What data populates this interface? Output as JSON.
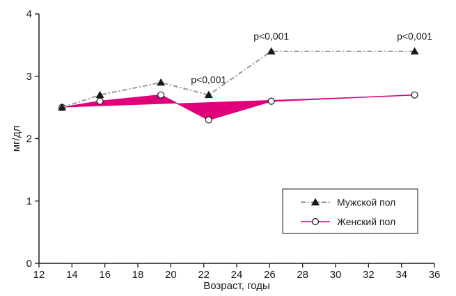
{
  "chart_data": {
    "type": "line",
    "xlabel": "Возраст, годы",
    "ylabel": "мг/дл",
    "xlim": [
      12,
      36
    ],
    "ylim": [
      0,
      4
    ],
    "xticks": [
      12,
      14,
      16,
      18,
      20,
      22,
      24,
      26,
      28,
      30,
      32,
      34,
      36
    ],
    "yticks": [
      0,
      1,
      2,
      3,
      4
    ],
    "grid": false,
    "legend_position": "lower-right",
    "series": [
      {
        "name": "Мужской пол",
        "marker": "triangle",
        "line_style": "dash-dot",
        "color": "#9a9a9a",
        "x": [
          13.4,
          15.7,
          19.4,
          22.3,
          26.1,
          34.8
        ],
        "y": [
          2.5,
          2.7,
          2.9,
          2.7,
          3.4,
          3.4
        ]
      },
      {
        "name": "Женский пол",
        "marker": "circle",
        "line_style": "solid",
        "color": "#e0007a",
        "x": [
          13.4,
          15.7,
          19.4,
          22.3,
          26.1,
          34.8
        ],
        "y": [
          2.5,
          2.6,
          2.7,
          2.3,
          2.6,
          2.7
        ]
      }
    ],
    "fill_color": "#e0007a",
    "annotations": [
      {
        "text": "p<0,001",
        "x": 22.3,
        "y": 2.7
      },
      {
        "text": "p<0,001",
        "x": 26.1,
        "y": 3.4
      },
      {
        "text": "p<0,001",
        "x": 34.8,
        "y": 3.4
      }
    ]
  }
}
